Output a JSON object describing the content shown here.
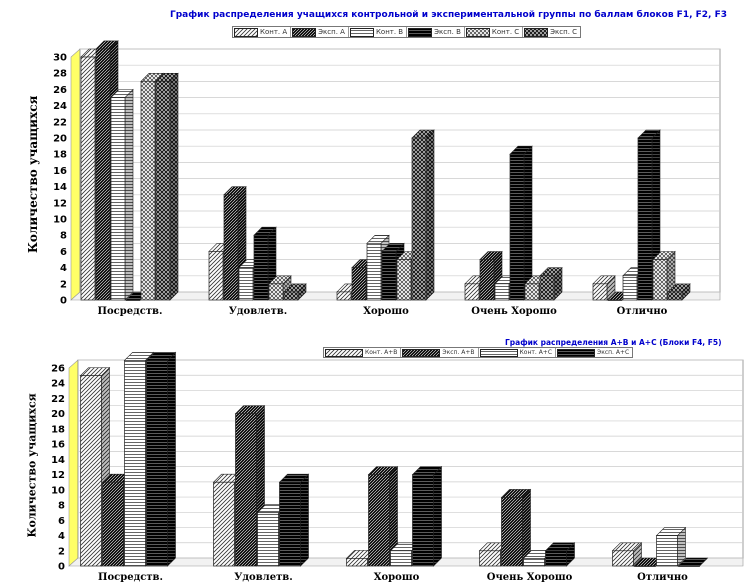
{
  "chart_data": [
    {
      "type": "bar",
      "title": "График распределения учащихся контрольной и экспериментальной группы по баллам блоков F1, F2, F3",
      "ylabel": "Количество учащихся",
      "xlabel": "",
      "ylim": [
        0,
        30
      ],
      "yticks": [
        0,
        2,
        4,
        6,
        8,
        10,
        12,
        14,
        16,
        18,
        20,
        22,
        24,
        26,
        28,
        30
      ],
      "categories": [
        "Посредств.",
        "Удовлетв.",
        "Хорошо",
        "Очень Хорошо",
        "Отлично"
      ],
      "series": [
        {
          "name": "Конт. А",
          "pattern": "diag-light",
          "values": [
            30,
            6,
            1,
            2,
            2
          ]
        },
        {
          "name": "Эксп. А",
          "pattern": "diag-dense",
          "values": [
            31,
            13,
            4,
            5,
            0
          ]
        },
        {
          "name": "Конт. В",
          "pattern": "white-horiz",
          "values": [
            25,
            4,
            7,
            2,
            3
          ]
        },
        {
          "name": "Эксп. В",
          "pattern": "black-horiz",
          "values": [
            0,
            8,
            6,
            18,
            20
          ]
        },
        {
          "name": "Конт. С",
          "pattern": "cross-light",
          "values": [
            27,
            2,
            5,
            2,
            5
          ]
        },
        {
          "name": "Эксп. С",
          "pattern": "cross-dense",
          "values": [
            27,
            1,
            20,
            3,
            1
          ]
        }
      ],
      "grid": true,
      "legend": "top"
    },
    {
      "type": "bar",
      "title": "График распределения А+В и А+С (Блоки F4, F5)",
      "ylabel": "Количество учащихся",
      "xlabel": "",
      "ylim": [
        0,
        26
      ],
      "yticks": [
        0,
        2,
        4,
        6,
        8,
        10,
        12,
        14,
        16,
        18,
        20,
        22,
        24,
        26
      ],
      "categories": [
        "Посредств.",
        "Удовлетв.",
        "Хорошо",
        "Очень Хорошо",
        "Отлично"
      ],
      "series": [
        {
          "name": "Конт. А+В",
          "pattern": "diag-light",
          "values": [
            25,
            11,
            1,
            2,
            2
          ]
        },
        {
          "name": "Эксп. А+В",
          "pattern": "diag-dense",
          "values": [
            11,
            20,
            12,
            9,
            0
          ]
        },
        {
          "name": "Конт. А+С",
          "pattern": "white-horiz",
          "values": [
            27,
            7,
            2,
            1,
            4
          ]
        },
        {
          "name": "Эксп. А+С",
          "pattern": "black-horiz",
          "values": [
            27,
            11,
            12,
            2,
            0
          ]
        }
      ],
      "grid": true,
      "legend": "top"
    }
  ]
}
